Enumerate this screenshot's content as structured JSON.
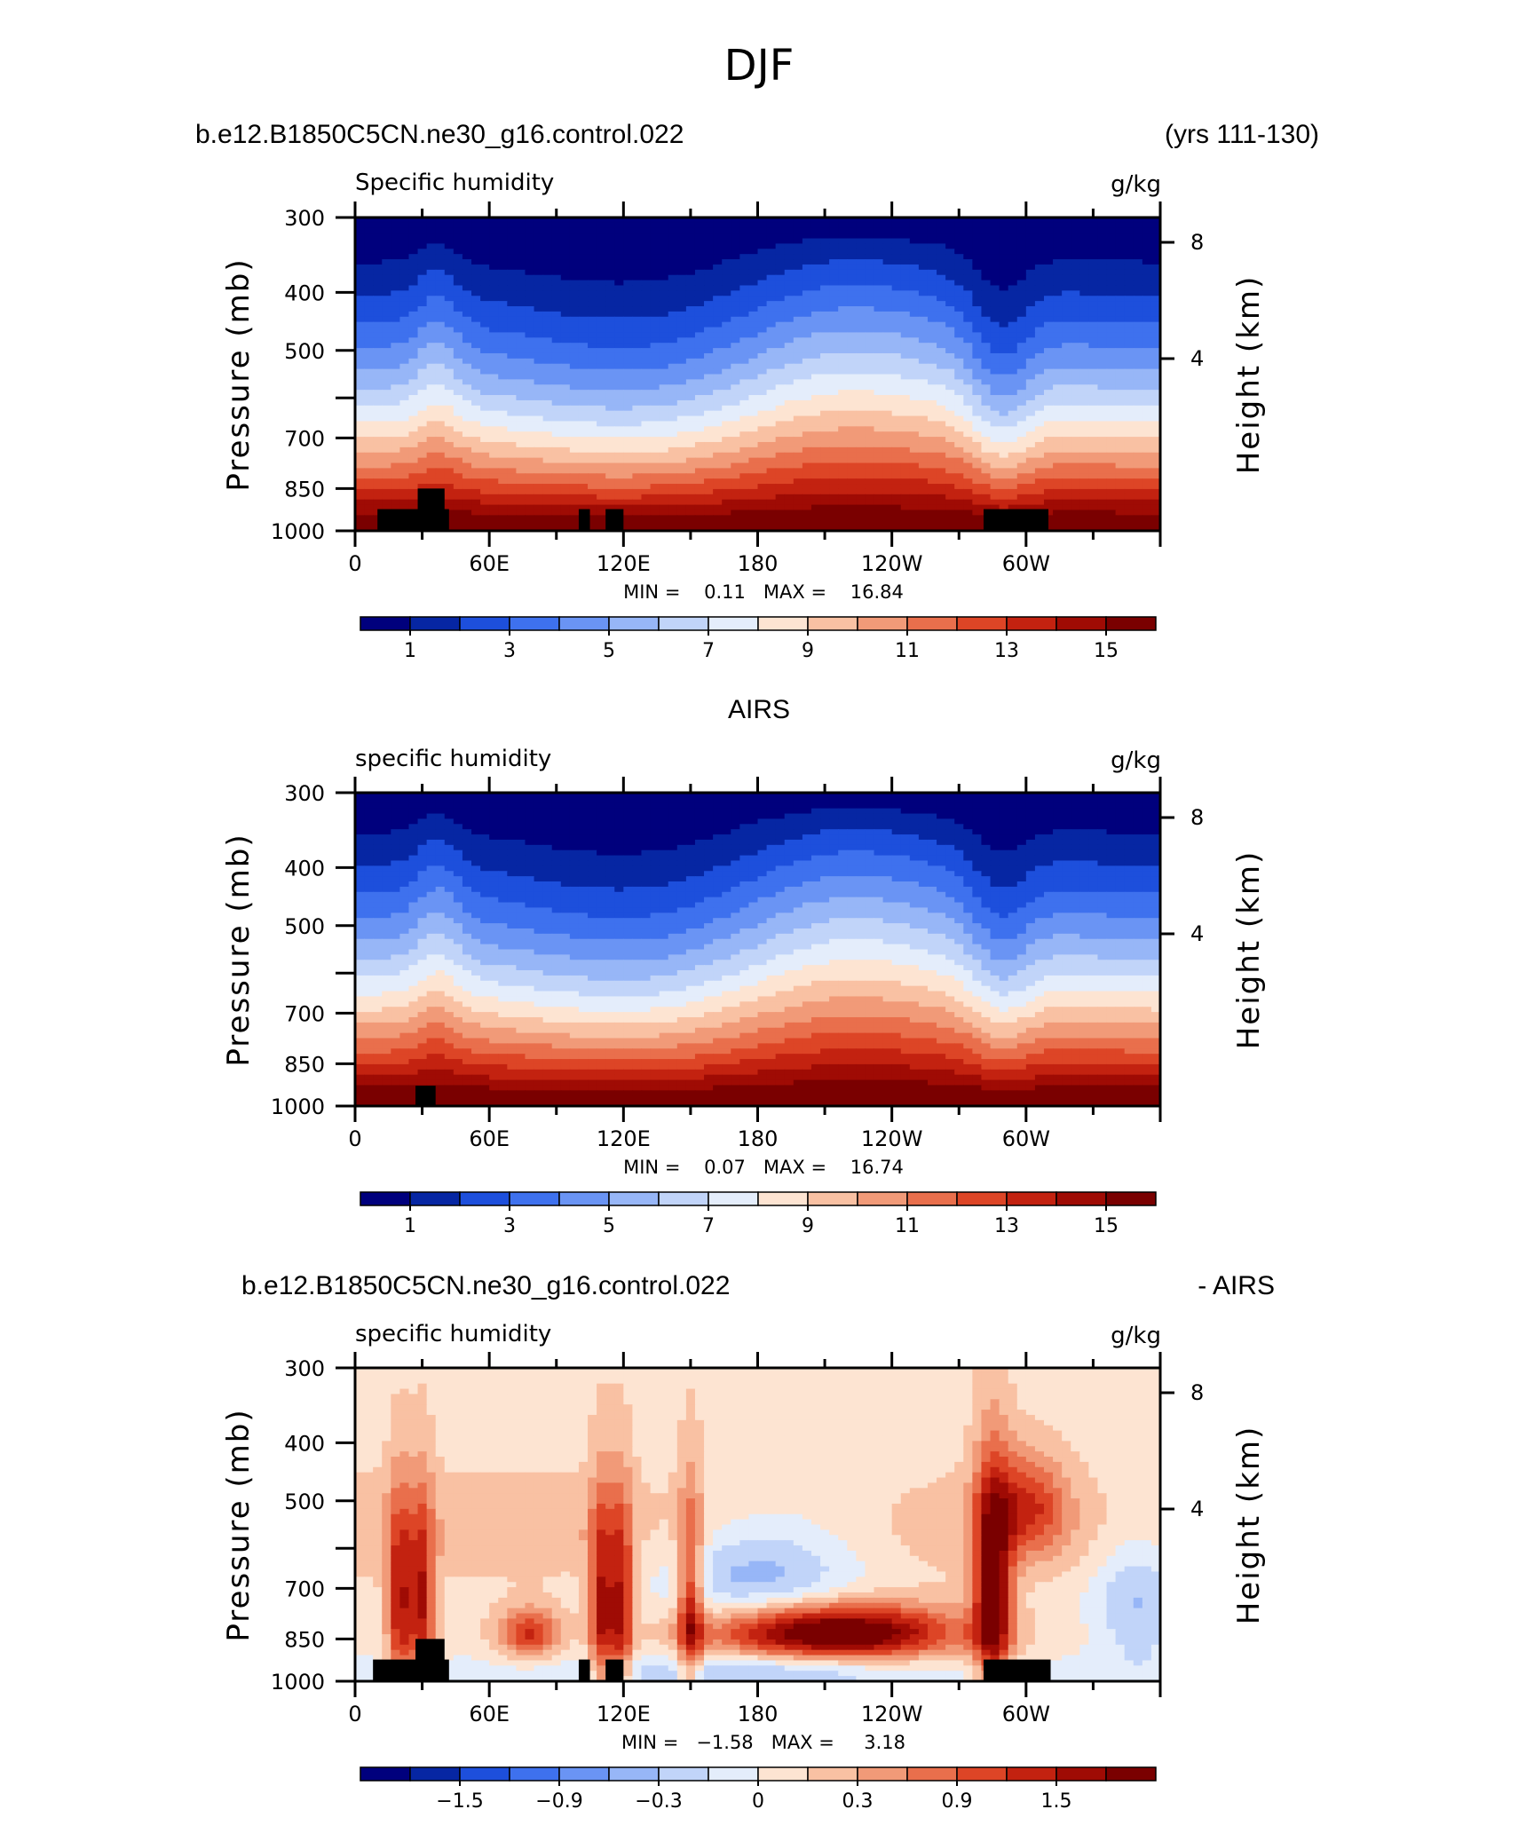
{
  "figure": {
    "title": "DJF"
  },
  "colors": {
    "abs_scale": [
      "#00007d",
      "#0626a3",
      "#1d4fdc",
      "#3e71ee",
      "#6a94f4",
      "#97b6f7",
      "#c1d4f9",
      "#e4edfb",
      "#fde4d2",
      "#f9c1a3",
      "#f19a78",
      "#e96f4c",
      "#dd4526",
      "#c32210",
      "#9f0b04",
      "#7a0000"
    ],
    "diff_scale": [
      "#00007d",
      "#0626a3",
      "#1d4fdc",
      "#3e71ee",
      "#6a94f4",
      "#97b6f7",
      "#c1d4f9",
      "#e4edfb",
      "#fde4d2",
      "#f9c1a3",
      "#f19a78",
      "#e96f4c",
      "#dd4526",
      "#c32210",
      "#9f0b04",
      "#7a0000"
    ],
    "topography": "#000000"
  },
  "chart_data": [
    {
      "type": "heatmap",
      "title_left": "b.e12.B1850C5CN.ne30_g16.control.022",
      "title_right": "(yrs 111-130)",
      "title_center": "",
      "subtitle_left": "Specific humidity",
      "subtitle_right": "g/kg",
      "ylabel": "Pressure (mb)",
      "ylabel_right": "Height (km)",
      "y_ticks": [
        "300",
        "400",
        "500",
        "600",
        "700",
        "850",
        "1000"
      ],
      "y_tick_labels": [
        "300",
        "400",
        "500",
        "",
        "700",
        "850",
        "1000"
      ],
      "y_right_ticks": [
        "8",
        "4"
      ],
      "x_ticks": [
        "0",
        "60E",
        "120E",
        "180",
        "120W",
        "60W"
      ],
      "ylim": [
        1000,
        300
      ],
      "xlim": [
        0,
        360
      ],
      "stats": "MIN =    0.11   MAX =    16.84",
      "field": "abs",
      "colorbar_labels": [
        "1",
        "3",
        "5",
        "7",
        "9",
        "11",
        "13",
        "15"
      ],
      "topo_blocks_lon_pressure": [
        [
          10,
          36,
          920,
          1000
        ],
        [
          28,
          40,
          850,
          1000
        ],
        [
          36,
          42,
          920,
          1000
        ],
        [
          100,
          105,
          920,
          1000
        ],
        [
          112,
          120,
          920,
          1000
        ],
        [
          281,
          310,
          920,
          1000
        ]
      ]
    },
    {
      "type": "heatmap",
      "title_left": "",
      "title_right": "",
      "title_center": "AIRS",
      "subtitle_left": "specific humidity",
      "subtitle_right": "g/kg",
      "ylabel": "Pressure (mb)",
      "ylabel_right": "Height (km)",
      "y_ticks": [
        "300",
        "400",
        "500",
        "600",
        "700",
        "850",
        "1000"
      ],
      "y_tick_labels": [
        "300",
        "400",
        "500",
        "",
        "700",
        "850",
        "1000"
      ],
      "y_right_ticks": [
        "8",
        "4"
      ],
      "x_ticks": [
        "0",
        "60E",
        "120E",
        "180",
        "120W",
        "60W"
      ],
      "ylim": [
        1000,
        300
      ],
      "xlim": [
        0,
        360
      ],
      "stats": "MIN =    0.07   MAX =    16.74",
      "field": "abs_airs",
      "colorbar_labels": [
        "1",
        "3",
        "5",
        "7",
        "9",
        "11",
        "13",
        "15"
      ],
      "topo_blocks_lon_pressure": [
        [
          27,
          36,
          925,
          1000
        ]
      ]
    },
    {
      "type": "heatmap",
      "title_left": "b.e12.B1850C5CN.ne30_g16.control.022",
      "title_right": "- AIRS",
      "title_center": "",
      "subtitle_left": "specific humidity",
      "subtitle_right": "g/kg",
      "ylabel": "Pressure (mb)",
      "ylabel_right": "Height (km)",
      "y_ticks": [
        "300",
        "400",
        "500",
        "600",
        "700",
        "850",
        "1000"
      ],
      "y_tick_labels": [
        "300",
        "400",
        "500",
        "",
        "700",
        "850",
        "1000"
      ],
      "y_right_ticks": [
        "8",
        "4"
      ],
      "x_ticks": [
        "0",
        "60E",
        "120E",
        "180",
        "120W",
        "60W"
      ],
      "ylim": [
        1000,
        300
      ],
      "xlim": [
        0,
        360
      ],
      "stats": "MIN =   −1.58   MAX =     3.18",
      "field": "diff",
      "colorbar_labels": [
        "−1.5",
        "−0.9",
        "−0.3",
        "0",
        "0.3",
        "0.9",
        "1.5"
      ],
      "topo_blocks_lon_pressure": [
        [
          8,
          36,
          920,
          1000
        ],
        [
          27,
          40,
          850,
          1000
        ],
        [
          36,
          42,
          920,
          1000
        ],
        [
          100,
          105,
          920,
          1000
        ],
        [
          112,
          120,
          920,
          1000
        ],
        [
          281,
          311,
          920,
          1000
        ]
      ]
    }
  ]
}
